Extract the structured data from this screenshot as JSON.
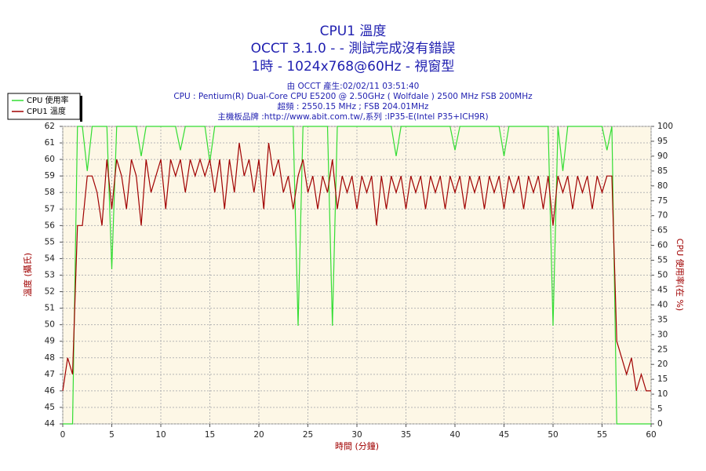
{
  "chart_data": {
    "type": "line",
    "title": "CPU1 溫度",
    "subtitle": "OCCT 3.1.0 -  - 測試完成沒有錯誤",
    "subtitle2": "1時 - 1024x768@60Hz - 視窗型",
    "info": [
      "由 OCCT 產生:02/02/11 03:51:40",
      "CPU : Pentium(R) Dual-Core CPU E5200 @ 2.50GHz ( Wolfdale ) 2500 MHz FSB 200MHz",
      "超頻 : 2550.15 MHz ; FSB 204.01MHz",
      "主機板品牌 :http://www.abit.com.tw/,系列 :IP35-E(Intel P35+ICH9R)"
    ],
    "x_label": "時間 (分鐘)",
    "y_label": "溫度 (攝氏)",
    "y2_label": "CPU 使用率(在 %)",
    "xlim": [
      0,
      60
    ],
    "xticks": [
      0,
      5,
      10,
      15,
      20,
      25,
      30,
      35,
      40,
      45,
      50,
      55,
      60
    ],
    "ylim": [
      44,
      62
    ],
    "yticks": [
      44,
      45,
      46,
      47,
      48,
      49,
      50,
      51,
      52,
      53,
      54,
      55,
      56,
      57,
      58,
      59,
      60,
      61,
      62
    ],
    "y2lim": [
      0,
      100
    ],
    "y2ticks": [
      0,
      5,
      10,
      15,
      20,
      25,
      30,
      35,
      40,
      45,
      50,
      55,
      60,
      65,
      70,
      75,
      80,
      85,
      90,
      95,
      100
    ],
    "grid": true,
    "legend": "top-left",
    "x": [
      0,
      0.5,
      1,
      1.5,
      2,
      2.5,
      3,
      3.5,
      4,
      4.5,
      5,
      5.5,
      6,
      6.5,
      7,
      7.5,
      8,
      8.5,
      9,
      9.5,
      10,
      10.5,
      11,
      11.5,
      12,
      12.5,
      13,
      13.5,
      14,
      14.5,
      15,
      15.5,
      16,
      16.5,
      17,
      17.5,
      18,
      18.5,
      19,
      19.5,
      20,
      20.5,
      21,
      21.5,
      22,
      22.5,
      23,
      23.5,
      24,
      24.5,
      25,
      25.5,
      26,
      26.5,
      27,
      27.5,
      28,
      28.5,
      29,
      29.5,
      30,
      30.5,
      31,
      31.5,
      32,
      32.5,
      33,
      33.5,
      34,
      34.5,
      35,
      35.5,
      36,
      36.5,
      37,
      37.5,
      38,
      38.5,
      39,
      39.5,
      40,
      40.5,
      41,
      41.5,
      42,
      42.5,
      43,
      43.5,
      44,
      44.5,
      45,
      45.5,
      46,
      46.5,
      47,
      47.5,
      48,
      48.5,
      49,
      49.5,
      50,
      50.5,
      51,
      51.5,
      52,
      52.5,
      53,
      53.5,
      54,
      54.5,
      55,
      55.5,
      56,
      56.5,
      57,
      57.5,
      58,
      58.5,
      59,
      59.5,
      60
    ],
    "series": [
      {
        "name": "CPU 使用率",
        "color": "#33dd33",
        "axis": "y2",
        "values": [
          0,
          0,
          0,
          100,
          100,
          85,
          100,
          100,
          100,
          100,
          52,
          100,
          100,
          100,
          100,
          100,
          90,
          100,
          100,
          100,
          100,
          100,
          100,
          100,
          92,
          100,
          100,
          100,
          100,
          100,
          88,
          100,
          100,
          100,
          100,
          100,
          100,
          100,
          100,
          100,
          100,
          100,
          100,
          100,
          100,
          100,
          100,
          100,
          33,
          100,
          100,
          100,
          100,
          100,
          100,
          33,
          100,
          100,
          100,
          100,
          100,
          100,
          100,
          100,
          100,
          100,
          100,
          100,
          90,
          100,
          100,
          100,
          100,
          100,
          100,
          100,
          100,
          100,
          100,
          100,
          92,
          100,
          100,
          100,
          100,
          100,
          100,
          100,
          100,
          100,
          90,
          100,
          100,
          100,
          100,
          100,
          100,
          100,
          100,
          100,
          33,
          100,
          85,
          100,
          100,
          100,
          100,
          100,
          100,
          100,
          100,
          92,
          100,
          0,
          0,
          0,
          0,
          0,
          0,
          0,
          0
        ]
      },
      {
        "name": "CPU1 溫度",
        "color": "#a00000",
        "values": [
          46,
          48,
          47,
          56,
          56,
          59,
          59,
          58,
          56,
          60,
          57,
          60,
          59,
          57,
          60,
          59,
          56,
          60,
          58,
          59,
          60,
          57,
          60,
          59,
          60,
          58,
          60,
          59,
          60,
          59,
          60,
          58,
          60,
          57,
          60,
          58,
          61,
          59,
          60,
          58,
          60,
          57,
          61,
          59,
          60,
          58,
          59,
          57,
          59,
          60,
          58,
          59,
          57,
          59,
          58,
          60,
          57,
          59,
          58,
          59,
          57,
          59,
          58,
          59,
          56,
          59,
          57,
          59,
          58,
          59,
          57,
          59,
          58,
          59,
          57,
          59,
          58,
          59,
          57,
          59,
          58,
          59,
          57,
          59,
          58,
          59,
          57,
          59,
          58,
          59,
          57,
          59,
          58,
          59,
          57,
          59,
          58,
          59,
          57,
          59,
          56,
          59,
          58,
          59,
          57,
          59,
          58,
          59,
          57,
          59,
          58,
          59,
          59,
          49,
          48,
          47,
          48,
          46,
          47,
          46,
          46
        ]
      }
    ]
  }
}
